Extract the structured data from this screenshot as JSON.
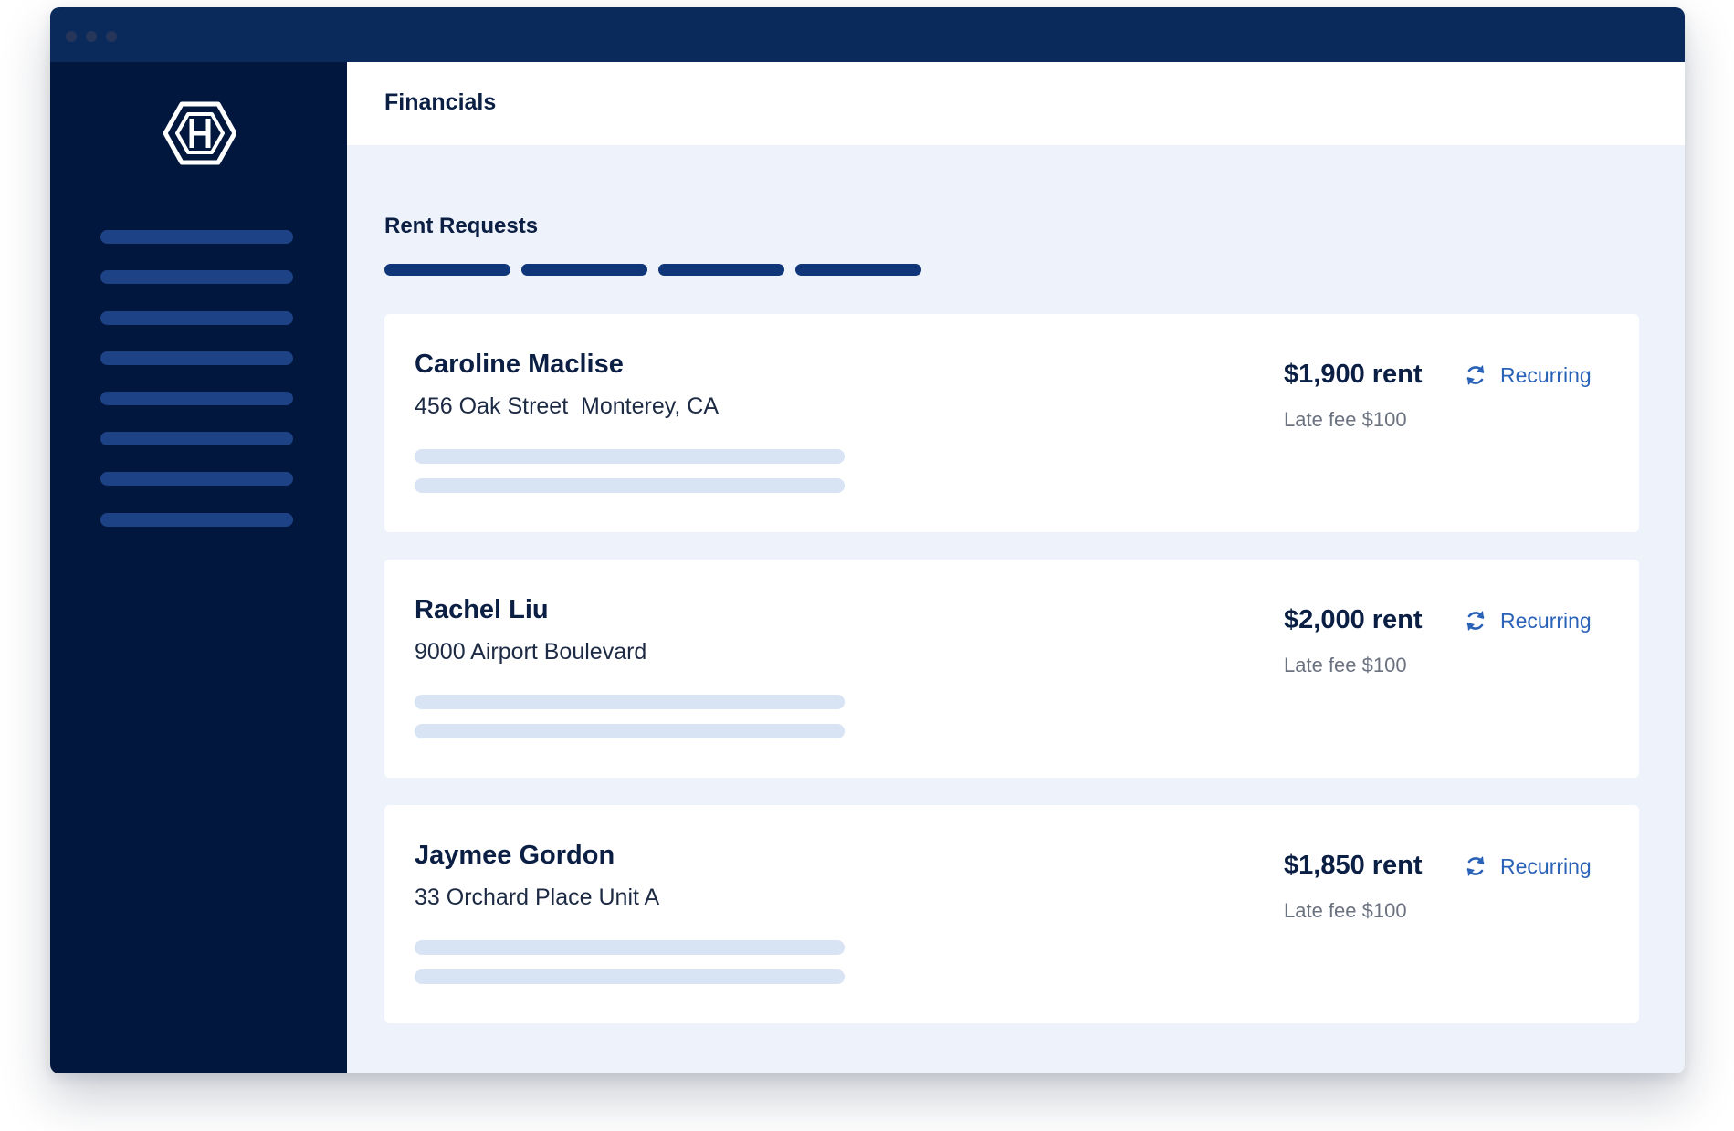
{
  "header": {
    "title": "Financials"
  },
  "section": {
    "title": "Rent Requests"
  },
  "sidebar": {
    "logo_icon": "hexagon-h-logo-icon",
    "item_count": 8
  },
  "tabs_placeholder_count": 4,
  "rent_requests": [
    {
      "name": "Caroline Maclise",
      "address": "456 Oak Street  Monterey, CA",
      "rent": "$1,900 rent",
      "late_fee": "Late fee $100",
      "status": "Recurring"
    },
    {
      "name": "Rachel Liu",
      "address": "9000 Airport Boulevard",
      "rent": "$2,000 rent",
      "late_fee": "Late fee $100",
      "status": "Recurring"
    },
    {
      "name": "Jaymee Gordon",
      "address": "33 Orchard Place Unit A",
      "rent": "$1,850 rent",
      "late_fee": "Late fee $100",
      "status": "Recurring"
    }
  ],
  "colors": {
    "titlebar": "#0b2a5c",
    "sidebar": "#02173d",
    "accent": "#2a62b8",
    "text_dark": "#0b1f44"
  }
}
